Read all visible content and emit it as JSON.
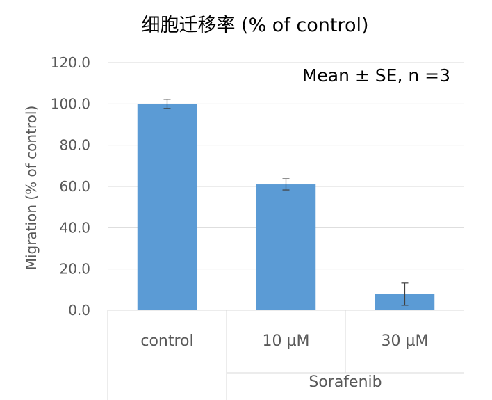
{
  "chart_data": {
    "type": "bar",
    "title": "细胞迁移率 (% of control)",
    "annotation": "Mean ± SE, n =3",
    "ylabel": "Migration (% of control)",
    "xlabel": "",
    "categories": [
      "control",
      "10 µM",
      "30 µM"
    ],
    "group_label": "Sorafenib",
    "series": [
      {
        "values": [
          100.0,
          61.0,
          7.8
        ],
        "errors": [
          2.2,
          2.7,
          5.4
        ],
        "color": "#5b9bd5"
      }
    ],
    "ylim": [
      0,
      120
    ],
    "yticks": [
      "0.0",
      "20.0",
      "40.0",
      "60.0",
      "80.0",
      "100.0",
      "120.0"
    ],
    "grid": true,
    "legend": "none"
  }
}
